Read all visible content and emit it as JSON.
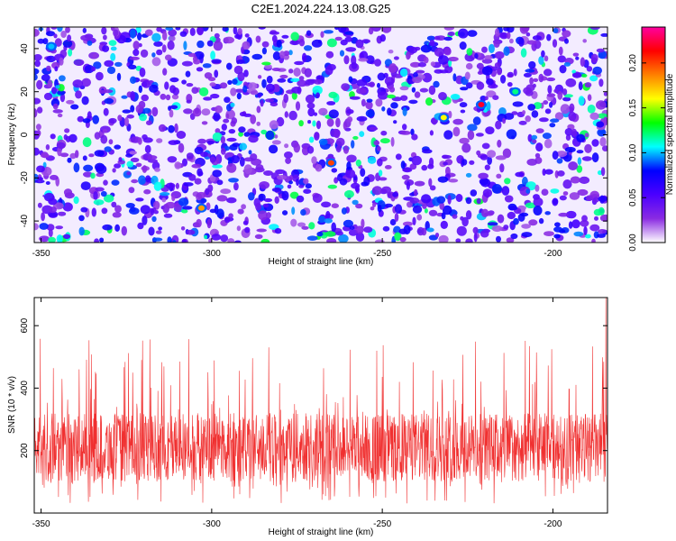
{
  "chart_data": [
    {
      "type": "heatmap",
      "title": "C2E1.2024.224.13.08.G25",
      "xlabel": "Height of straight line (km)",
      "ylabel": "Frequency (Hz)",
      "xlim": [
        -352,
        -184
      ],
      "ylim": [
        -50,
        50
      ],
      "x_ticks": [
        -350,
        -300,
        -250,
        -200
      ],
      "y_ticks": [
        -40,
        -20,
        0,
        20,
        40
      ],
      "colorbar": {
        "label": "Normalized spectral amplitude",
        "range": [
          0,
          0.24
        ],
        "ticks": [
          0.0,
          0.05,
          0.1,
          0.15,
          0.2
        ],
        "colors": [
          "#ffffff",
          "#8a2be2",
          "#4b00ff",
          "#0000ff",
          "#00ffff",
          "#00ff00",
          "#ffff00",
          "#ff8000",
          "#ff0000",
          "#ff00a0"
        ]
      },
      "notable_peaks": [
        {
          "x": -303,
          "y": -34,
          "value": 0.18
        },
        {
          "x": -265,
          "y": -13,
          "value": 0.2
        },
        {
          "x": -232,
          "y": 8,
          "value": 0.16
        },
        {
          "x": -221,
          "y": 14,
          "value": 0.22
        },
        {
          "x": -211,
          "y": 20,
          "value": 0.12
        },
        {
          "x": -347,
          "y": 41,
          "value": 0.1
        }
      ],
      "grid": false
    },
    {
      "type": "line",
      "xlabel": "Height of straight line (km)",
      "ylabel": "SNR (10 * v/v)",
      "xlim": [
        -352,
        -184
      ],
      "ylim": [
        0,
        690
      ],
      "x_ticks": [
        -350,
        -300,
        -250,
        -200
      ],
      "y_ticks": [
        200,
        400,
        600
      ],
      "color": "#f03030",
      "series_summary": {
        "typical_low": 100,
        "typical_high": 320,
        "max": 690,
        "max_at_x": -185
      },
      "grid": false
    }
  ]
}
